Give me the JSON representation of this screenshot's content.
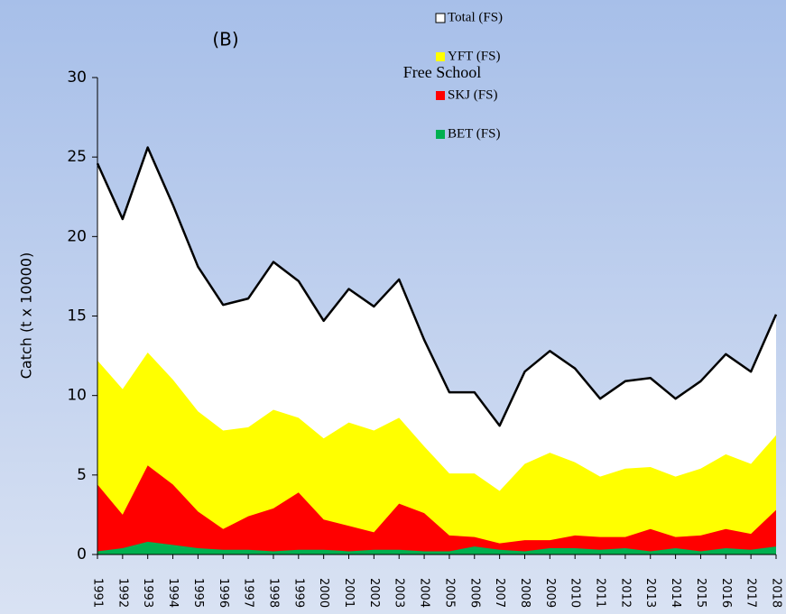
{
  "chart_data": {
    "type": "area",
    "title": "Free School",
    "annotation": "(B)",
    "y_label": "Catch (t x 10000)",
    "categories": [
      "1991",
      "1992",
      "1993",
      "1994",
      "1995",
      "1996",
      "1997",
      "1998",
      "1999",
      "2000",
      "2001",
      "2002",
      "2003",
      "2004",
      "2005",
      "2006",
      "2007",
      "2008",
      "2009",
      "2010",
      "2011",
      "2012",
      "2013",
      "2014",
      "2015",
      "2016",
      "2017",
      "2018"
    ],
    "series": [
      {
        "name": "Total (FS)",
        "color": "#ffffff",
        "values": [
          24.6,
          21.1,
          25.6,
          22.0,
          18.1,
          15.7,
          16.1,
          18.4,
          17.2,
          14.7,
          16.7,
          15.6,
          17.3,
          13.5,
          10.2,
          10.2,
          8.1,
          11.5,
          12.8,
          11.7,
          9.8,
          10.9,
          11.1,
          9.8,
          10.9,
          12.6,
          11.5,
          15.1
        ]
      },
      {
        "name": "YFT (FS)",
        "color": "#ffff00",
        "values": [
          12.2,
          10.4,
          12.7,
          11.0,
          9.0,
          7.8,
          8.0,
          9.1,
          8.6,
          7.3,
          8.3,
          7.8,
          8.6,
          6.8,
          5.1,
          5.1,
          4.0,
          5.7,
          6.4,
          5.8,
          4.9,
          5.4,
          5.5,
          4.9,
          5.4,
          6.3,
          5.7,
          7.5
        ]
      },
      {
        "name": "SKJ (FS)",
        "color": "#ff0000",
        "values": [
          4.4,
          2.5,
          5.6,
          4.4,
          2.7,
          1.6,
          2.4,
          2.9,
          3.9,
          2.2,
          1.8,
          1.4,
          3.2,
          2.6,
          1.2,
          1.1,
          0.7,
          0.9,
          0.9,
          1.2,
          1.1,
          1.1,
          1.6,
          1.1,
          1.2,
          1.6,
          1.3,
          2.8
        ]
      },
      {
        "name": "BET (FS)",
        "color": "#00b050",
        "values": [
          0.2,
          0.4,
          0.8,
          0.6,
          0.4,
          0.3,
          0.3,
          0.2,
          0.3,
          0.3,
          0.2,
          0.3,
          0.3,
          0.2,
          0.2,
          0.5,
          0.3,
          0.2,
          0.4,
          0.4,
          0.3,
          0.4,
          0.2,
          0.4,
          0.2,
          0.4,
          0.3,
          0.5
        ]
      }
    ],
    "ylim": [
      0,
      30
    ],
    "yticks": [
      0,
      5,
      10,
      15,
      20,
      25,
      30
    ],
    "legend": "top right",
    "grid": false
  }
}
